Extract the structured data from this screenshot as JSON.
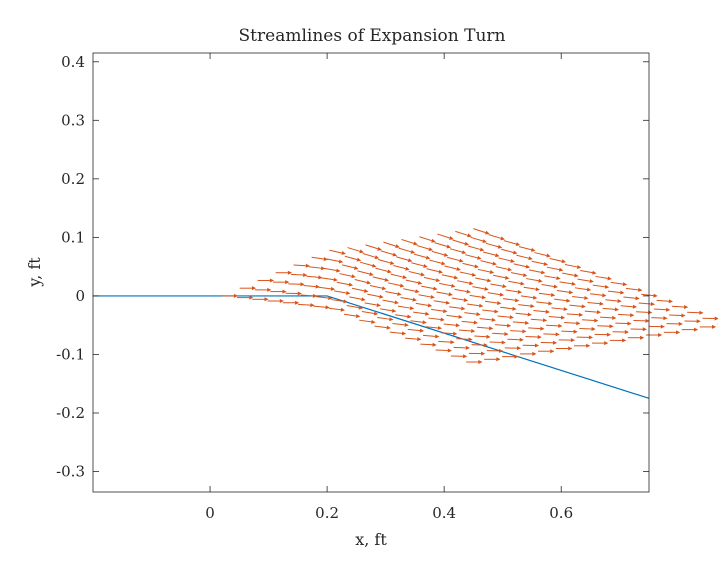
{
  "chart_data": {
    "type": "quiver",
    "title": "Streamlines of Expansion Turn",
    "xlabel": "x, ft",
    "ylabel": "y, ft",
    "xlim": [
      -0.2,
      0.75
    ],
    "ylim": [
      -0.335,
      0.415
    ],
    "xticks": [
      "0",
      "0.2",
      "0.4",
      "0.6"
    ],
    "xtick_values": [
      0,
      0.2,
      0.4,
      0.6
    ],
    "yticks": [
      "-0.3",
      "-0.2",
      "-0.1",
      "0",
      "0.1",
      "0.2",
      "0.3",
      "0.4"
    ],
    "ytick_values": [
      -0.3,
      -0.2,
      -0.1,
      0,
      0.1,
      0.2,
      0.3,
      0.4
    ],
    "grid": false,
    "wall": {
      "color": "#0072BD",
      "x": [
        -0.2,
        0.2,
        0.75
      ],
      "y": [
        0,
        0,
        -0.175
      ]
    },
    "vector_field": {
      "color": "#D95319",
      "rows": 17,
      "cols": 15,
      "origin": [
        0.02,
        0.0
      ],
      "step_along_flow": [
        0.0307,
        0.0132
      ],
      "step_across_flow": [
        0.0261,
        -0.0029
      ],
      "wall_corner_x": 0.2,
      "wall_turn_slope": -0.318,
      "arrow_length_x": 0.028
    }
  }
}
